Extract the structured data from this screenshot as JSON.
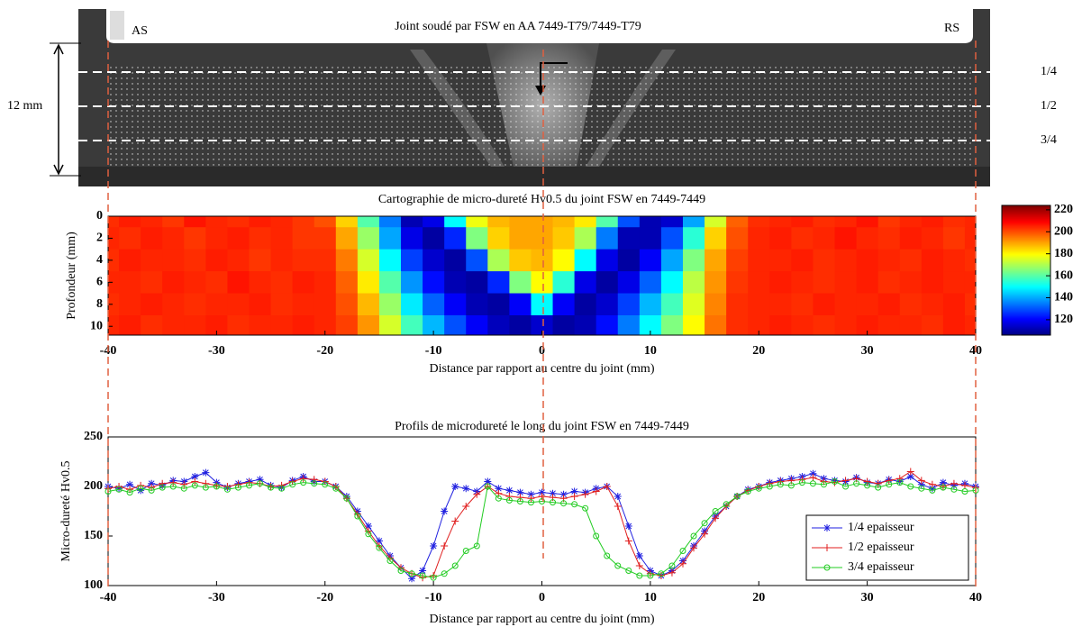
{
  "photo": {
    "title": "Joint soudé par FSW en AA 7449-T79/7449-T79",
    "left_label": "AS",
    "right_label": "RS",
    "thickness_label": "12 mm",
    "line_labels": [
      "1/4",
      "1/2",
      "3/4"
    ]
  },
  "chart_data": [
    {
      "type": "heatmap",
      "title": "Cartographie de micro-dureté Hv0.5 du joint FSW en 7449-7449",
      "x_label": "Distance par rapport au centre du joint (mm)",
      "y_label": "Profondeur (mm)",
      "x": [
        -40,
        -38,
        -36,
        -34,
        -32,
        -30,
        -28,
        -26,
        -24,
        -22,
        -20,
        -18,
        -16,
        -14,
        -12,
        -10,
        -8,
        -6,
        -4,
        -2,
        0,
        2,
        4,
        6,
        8,
        10,
        12,
        14,
        16,
        18,
        20,
        22,
        24,
        26,
        28,
        30,
        32,
        34,
        36,
        38,
        40
      ],
      "y": [
        0,
        2,
        4,
        6,
        8,
        10
      ],
      "z": [
        [
          204,
          206,
          205,
          203,
          207,
          205,
          204,
          206,
          205,
          203,
          200,
          185,
          160,
          135,
          112,
          118,
          150,
          178,
          188,
          190,
          190,
          188,
          182,
          160,
          130,
          112,
          115,
          140,
          175,
          198,
          204,
          205,
          206,
          204,
          205,
          207,
          203,
          205,
          206,
          204,
          205
        ],
        [
          205,
          204,
          206,
          205,
          203,
          205,
          206,
          204,
          205,
          203,
          203,
          190,
          168,
          140,
          118,
          110,
          125,
          165,
          185,
          190,
          190,
          186,
          170,
          135,
          112,
          112,
          130,
          155,
          185,
          200,
          205,
          206,
          204,
          205,
          207,
          205,
          204,
          206,
          205,
          203,
          205
        ],
        [
          204,
          206,
          205,
          205,
          204,
          206,
          205,
          203,
          205,
          204,
          204,
          195,
          175,
          150,
          128,
          115,
          110,
          130,
          170,
          186,
          188,
          180,
          150,
          118,
          110,
          120,
          140,
          165,
          190,
          202,
          205,
          205,
          206,
          204,
          205,
          206,
          205,
          204,
          206,
          205,
          204
        ],
        [
          205,
          205,
          204,
          206,
          205,
          204,
          207,
          205,
          204,
          206,
          205,
          198,
          182,
          160,
          138,
          122,
          112,
          110,
          125,
          165,
          180,
          155,
          118,
          110,
          118,
          132,
          150,
          172,
          192,
          203,
          205,
          206,
          205,
          204,
          205,
          206,
          204,
          205,
          206,
          205,
          205
        ],
        [
          204,
          205,
          206,
          205,
          204,
          205,
          205,
          206,
          204,
          205,
          205,
          200,
          188,
          168,
          148,
          132,
          120,
          112,
          110,
          120,
          150,
          120,
          110,
          115,
          128,
          142,
          158,
          176,
          194,
          204,
          205,
          205,
          204,
          206,
          205,
          205,
          206,
          204,
          205,
          206,
          204
        ],
        [
          205,
          206,
          204,
          205,
          205,
          206,
          204,
          205,
          205,
          206,
          205,
          202,
          192,
          175,
          158,
          142,
          130,
          120,
          113,
          110,
          115,
          110,
          112,
          122,
          135,
          150,
          165,
          180,
          196,
          204,
          205,
          206,
          205,
          204,
          205,
          206,
          205,
          205,
          204,
          206,
          205
        ]
      ],
      "xlim": [
        -40,
        40
      ],
      "ylim": [
        0,
        10.8
      ],
      "xticks": [
        -40,
        -30,
        -20,
        -10,
        0,
        10,
        20,
        30,
        40
      ],
      "yticks": [
        0,
        2,
        4,
        6,
        8,
        10
      ],
      "clim": [
        106,
        224
      ],
      "cticks": [
        120,
        140,
        160,
        180,
        200,
        220
      ],
      "colormap": "jet"
    },
    {
      "type": "line",
      "title": "Profils de microdureté le long du joint FSW en 7449-7449",
      "x_label": "Distance par rapport au centre du joint (mm)",
      "y_label": "Micro-dureté Hv0.5",
      "x": [
        -40,
        -39,
        -38,
        -37,
        -36,
        -35,
        -34,
        -33,
        -32,
        -31,
        -30,
        -29,
        -28,
        -27,
        -26,
        -25,
        -24,
        -23,
        -22,
        -21,
        -20,
        -19,
        -18,
        -17,
        -16,
        -15,
        -14,
        -13,
        -12,
        -11,
        -10,
        -9,
        -8,
        -7,
        -6,
        -5,
        -4,
        -3,
        -2,
        -1,
        0,
        1,
        2,
        3,
        4,
        5,
        6,
        7,
        8,
        9,
        10,
        11,
        12,
        13,
        14,
        15,
        16,
        17,
        18,
        19,
        20,
        21,
        22,
        23,
        24,
        25,
        26,
        27,
        28,
        29,
        30,
        31,
        32,
        33,
        34,
        35,
        36,
        37,
        38,
        39,
        40
      ],
      "series": [
        {
          "name": "1/4 epaisseur",
          "color": "#1f1fe0",
          "marker": "star",
          "values": [
            200,
            198,
            202,
            196,
            203,
            201,
            206,
            205,
            210,
            214,
            204,
            199,
            203,
            205,
            207,
            201,
            199,
            206,
            210,
            205,
            205,
            200,
            190,
            175,
            160,
            145,
            130,
            118,
            107,
            115,
            140,
            175,
            200,
            198,
            195,
            205,
            198,
            196,
            194,
            192,
            194,
            193,
            192,
            195,
            194,
            198,
            200,
            190,
            160,
            130,
            115,
            110,
            115,
            125,
            140,
            155,
            170,
            180,
            190,
            197,
            200,
            204,
            206,
            208,
            210,
            213,
            208,
            206,
            205,
            209,
            204,
            203,
            207,
            205,
            210,
            202,
            198,
            204,
            201,
            203,
            200
          ]
        },
        {
          "name": "1/2 epaisseur",
          "color": "#e01f1f",
          "marker": "plus",
          "values": [
            198,
            200,
            197,
            201,
            199,
            203,
            204,
            202,
            205,
            203,
            201,
            200,
            202,
            204,
            203,
            200,
            201,
            205,
            208,
            207,
            205,
            200,
            188,
            172,
            155,
            140,
            128,
            118,
            112,
            108,
            110,
            140,
            165,
            180,
            192,
            200,
            193,
            190,
            189,
            188,
            190,
            189,
            188,
            190,
            192,
            195,
            200,
            180,
            145,
            120,
            112,
            110,
            113,
            122,
            138,
            152,
            168,
            180,
            190,
            196,
            200,
            203,
            205,
            206,
            207,
            209,
            205,
            204,
            206,
            208,
            205,
            203,
            206,
            208,
            215,
            206,
            202,
            200,
            203,
            201,
            199
          ]
        },
        {
          "name": "3/4 epaisseur",
          "color": "#22cc22",
          "marker": "circle",
          "values": [
            195,
            197,
            194,
            198,
            196,
            199,
            200,
            198,
            201,
            199,
            200,
            197,
            199,
            201,
            203,
            199,
            198,
            202,
            204,
            203,
            202,
            198,
            188,
            170,
            152,
            138,
            125,
            115,
            112,
            110,
            108,
            112,
            120,
            135,
            140,
            200,
            188,
            186,
            185,
            184,
            185,
            184,
            183,
            182,
            178,
            150,
            130,
            120,
            115,
            110,
            110,
            112,
            120,
            135,
            150,
            163,
            175,
            182,
            190,
            195,
            198,
            200,
            202,
            201,
            204,
            203,
            202,
            205,
            200,
            203,
            201,
            199,
            202,
            204,
            200,
            198,
            196,
            199,
            197,
            195,
            196
          ]
        }
      ],
      "xlim": [
        -40,
        40
      ],
      "ylim": [
        100,
        250
      ],
      "xticks": [
        -40,
        -30,
        -20,
        -10,
        0,
        10,
        20,
        30,
        40
      ],
      "yticks": [
        100,
        150,
        200,
        250
      ],
      "legend": "lower right"
    }
  ]
}
